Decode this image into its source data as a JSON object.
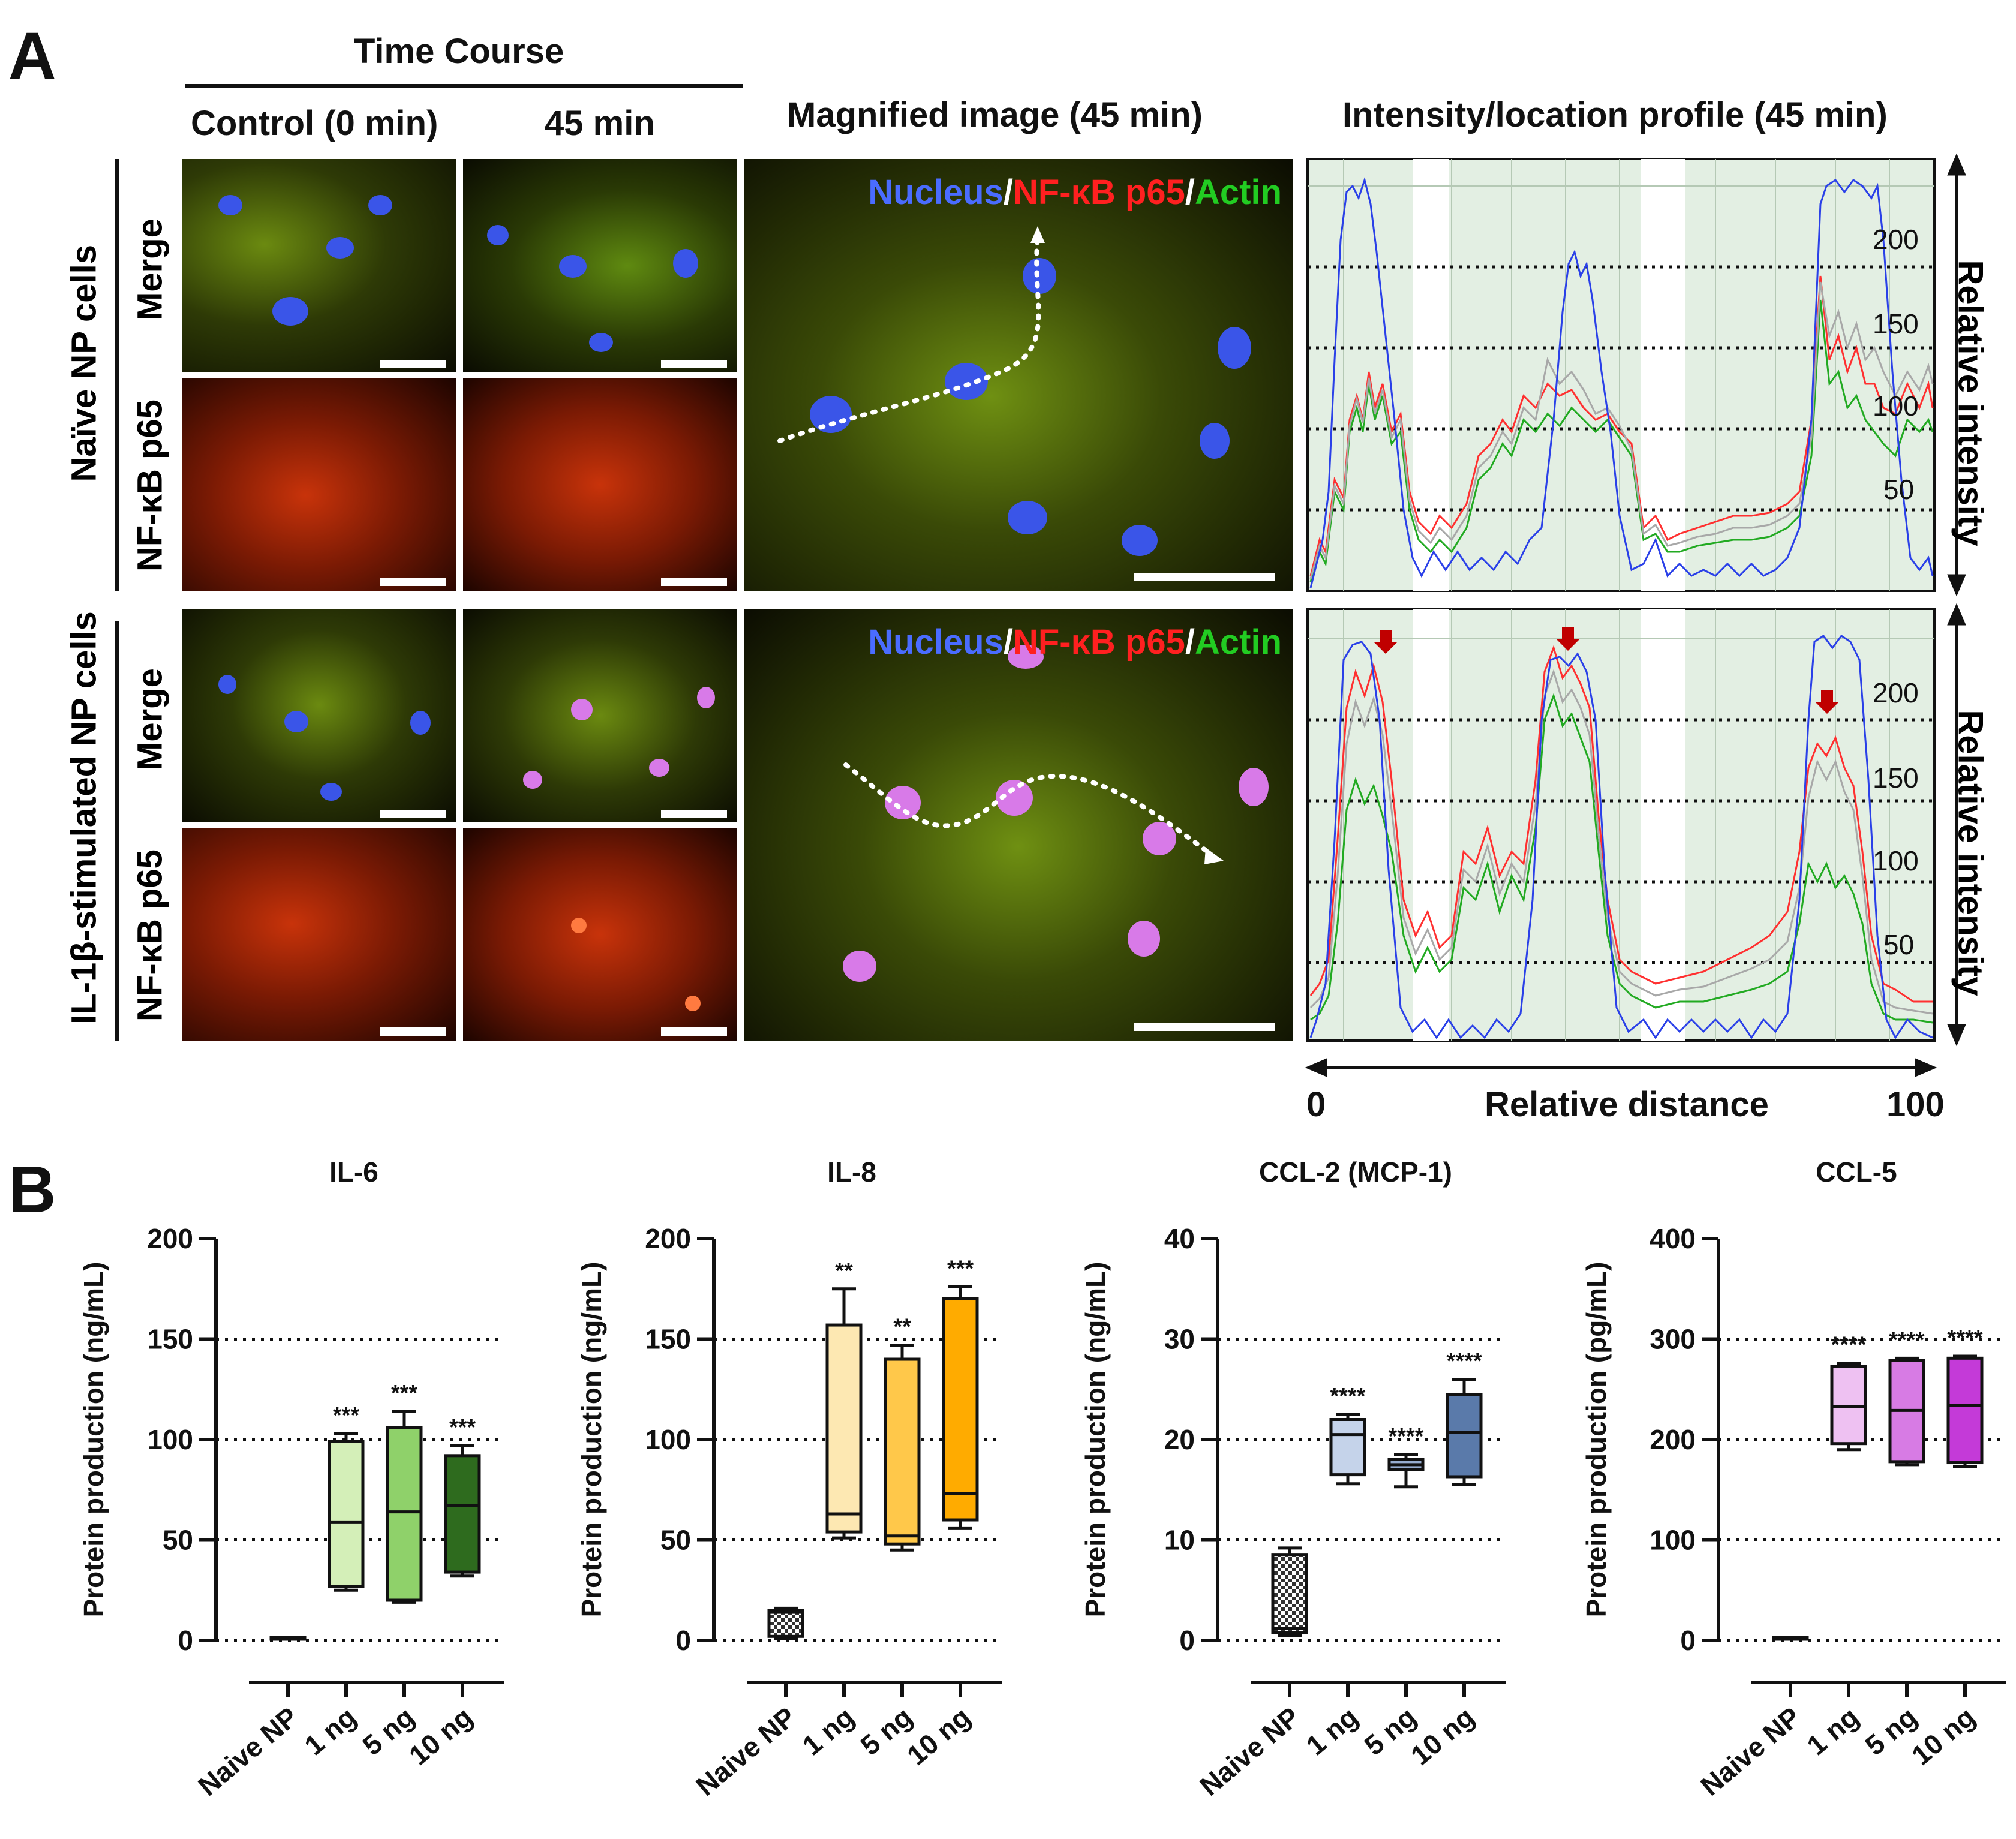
{
  "panel_a": {
    "letter": "A",
    "time_course": "Time Course",
    "col_control": "Control (0 min)",
    "col_45": "45 min",
    "col_magnified": "Magnified image (45 min)",
    "col_profile": "Intensity/location profile (45 min)",
    "row_naive": "Naïve NP cells",
    "row_il1b": "IL-1β-stimulated NP cells",
    "sub_merge": "Merge",
    "sub_nfkb": "NF-κB p65",
    "legend_nucleus": "Nucleus",
    "legend_slash": "/",
    "legend_nfkb": "NF-κB p65",
    "legend_actin": "Actin",
    "profile_ylabel": "Relative intensity",
    "profile_xlabel": "Relative distance",
    "profile_x0": "0",
    "profile_x100": "100",
    "profile_ticks": [
      "200",
      "150",
      "100",
      "50"
    ],
    "colors": {
      "nucleus": "#4a6cff",
      "nfkb": "#ff2020",
      "actin": "#22cc22",
      "profile_bg": "#e3efe3"
    }
  },
  "panel_b": {
    "letter": "B",
    "xcats": [
      "Naive NP",
      "1 ng",
      "5 ng",
      "10 ng"
    ]
  },
  "chart_data": [
    {
      "type": "box",
      "title": "IL-6",
      "ylabel": "Protein production (ng/mL)",
      "ylim": [
        0,
        200
      ],
      "yticks": [
        "0",
        "50",
        "100",
        "150",
        "200"
      ],
      "grid_lines": [
        0,
        50,
        100,
        150
      ],
      "categories": [
        "Naive NP",
        "1 ng",
        "5 ng",
        "10 ng"
      ],
      "colors": [
        "#ffffff",
        "#d4efb8",
        "#8fd16a",
        "#2e6b1e"
      ],
      "boxes": [
        {
          "min": 1,
          "q1": 1,
          "median": 1,
          "q3": 1.5,
          "max": 1.5,
          "sig": ""
        },
        {
          "min": 25,
          "q1": 27,
          "median": 59,
          "q3": 99,
          "max": 103,
          "sig": "***"
        },
        {
          "min": 19,
          "q1": 20,
          "median": 64,
          "q3": 106,
          "max": 114,
          "sig": "***"
        },
        {
          "min": 32,
          "q1": 34,
          "median": 67,
          "q3": 92,
          "max": 97,
          "sig": "***"
        }
      ]
    },
    {
      "type": "box",
      "title": "IL-8",
      "ylabel": "Protein production (ng/mL)",
      "ylim": [
        0,
        200
      ],
      "yticks": [
        "0",
        "50",
        "100",
        "150",
        "200"
      ],
      "grid_lines": [
        0,
        50,
        100,
        150
      ],
      "categories": [
        "Naive NP",
        "1 ng",
        "5 ng",
        "10 ng"
      ],
      "colors": [
        "checker",
        "#fde8b2",
        "#ffc84a",
        "#ffab00"
      ],
      "boxes": [
        {
          "min": 1,
          "q1": 2,
          "median": 14,
          "q3": 15,
          "max": 16,
          "sig": ""
        },
        {
          "min": 51,
          "q1": 54,
          "median": 63,
          "q3": 157,
          "max": 175,
          "sig": "**"
        },
        {
          "min": 45,
          "q1": 48,
          "median": 52,
          "q3": 140,
          "max": 147,
          "sig": "**"
        },
        {
          "min": 56,
          "q1": 60,
          "median": 73,
          "q3": 170,
          "max": 176,
          "sig": "***"
        }
      ]
    },
    {
      "type": "box",
      "title": "CCL-2 (MCP-1)",
      "ylabel": "Protein production (ng/mL)",
      "ylim": [
        0,
        40
      ],
      "yticks": [
        "0",
        "10",
        "20",
        "30",
        "40"
      ],
      "grid_lines": [
        0,
        10,
        20,
        30
      ],
      "categories": [
        "Naive NP",
        "1 ng",
        "5 ng",
        "10 ng"
      ],
      "colors": [
        "checker",
        "#c5d3ea",
        "#97add0",
        "#5a7aaa"
      ],
      "boxes": [
        {
          "min": 0.5,
          "q1": 0.8,
          "median": 1.2,
          "q3": 8.5,
          "max": 9.2,
          "sig": ""
        },
        {
          "min": 15.6,
          "q1": 16.5,
          "median": 20.5,
          "q3": 22,
          "max": 22.5,
          "sig": "****"
        },
        {
          "min": 15.3,
          "q1": 17,
          "median": 17.5,
          "q3": 18,
          "max": 18.5,
          "sig": "****"
        },
        {
          "min": 15.5,
          "q1": 16.3,
          "median": 20.7,
          "q3": 24.5,
          "max": 26,
          "sig": "****"
        }
      ]
    },
    {
      "type": "box",
      "title": "CCL-5",
      "ylabel": "Protein production (pg/mL)",
      "ylim": [
        0,
        400
      ],
      "yticks": [
        "0",
        "100",
        "200",
        "300",
        "400"
      ],
      "grid_lines": [
        0,
        100,
        200,
        300
      ],
      "categories": [
        "Naive NP",
        "1 ng",
        "5 ng",
        "10 ng"
      ],
      "colors": [
        "#ffffff",
        "#eec1f2",
        "#d77be4",
        "#c43ad8"
      ],
      "boxes": [
        {
          "min": 2,
          "q1": 2,
          "median": 2,
          "q3": 3,
          "max": 3,
          "sig": ""
        },
        {
          "min": 190,
          "q1": 196,
          "median": 233,
          "q3": 273,
          "max": 276,
          "sig": "****"
        },
        {
          "min": 175,
          "q1": 178,
          "median": 229,
          "q3": 279,
          "max": 281,
          "sig": "****"
        },
        {
          "min": 173,
          "q1": 177,
          "median": 234,
          "q3": 281,
          "max": 283,
          "sig": "****"
        }
      ]
    }
  ]
}
